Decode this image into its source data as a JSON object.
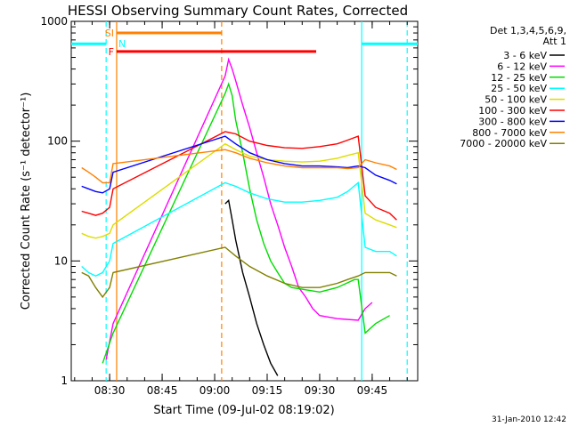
{
  "chart_data": {
    "type": "line",
    "title": "HESSI Observing Summary Count Rates, Corrected",
    "xlabel": "Start Time (09-Jul-02 08:19:02)",
    "ylabel": "Corrected Count Rate (s⁻¹ detector⁻¹)",
    "y_scale": "log",
    "ylim": [
      1,
      1000
    ],
    "xlim": [
      "08:19:02",
      "09:58:00"
    ],
    "x_ticks": [
      "08:30",
      "08:45",
      "09:00",
      "09:15",
      "09:30",
      "09:45"
    ],
    "y_ticks": [
      "1",
      "10",
      "100",
      "1000"
    ],
    "legend_title": [
      "Det 1,3,4,5,6,9,",
      "Att 1"
    ],
    "legend_position": "right",
    "series": [
      {
        "name": "3 - 6 keV",
        "color": "#000000",
        "points": [
          [
            "09:03",
            30
          ],
          [
            "09:04",
            32
          ],
          [
            "09:05",
            22
          ],
          [
            "09:06",
            15
          ],
          [
            "09:08",
            8
          ],
          [
            "09:10",
            5
          ],
          [
            "09:12",
            3
          ],
          [
            "09:14",
            2
          ],
          [
            "09:16",
            1.4
          ],
          [
            "09:18",
            1.1
          ]
        ]
      },
      {
        "name": "6 - 12 keV",
        "color": "#ff00ff",
        "points": [
          [
            "08:29",
            1.5
          ],
          [
            "08:31",
            3
          ],
          [
            "09:03",
            350
          ],
          [
            "09:04",
            480
          ],
          [
            "09:05",
            400
          ],
          [
            "09:06",
            320
          ],
          [
            "09:08",
            200
          ],
          [
            "09:10",
            130
          ],
          [
            "09:12",
            80
          ],
          [
            "09:14",
            50
          ],
          [
            "09:16",
            30
          ],
          [
            "09:18",
            20
          ],
          [
            "09:20",
            13
          ],
          [
            "09:22",
            9
          ],
          [
            "09:24",
            6
          ],
          [
            "09:26",
            5
          ],
          [
            "09:28",
            4
          ],
          [
            "09:30",
            3.5
          ],
          [
            "09:35",
            3.3
          ],
          [
            "09:41",
            3.2
          ],
          [
            "09:43",
            4
          ],
          [
            "09:45",
            4.5
          ]
        ]
      },
      {
        "name": "12 - 25 keV",
        "color": "#00dd00",
        "points": [
          [
            "08:28",
            1.4
          ],
          [
            "08:31",
            2.5
          ],
          [
            "09:03",
            250
          ],
          [
            "09:04",
            300
          ],
          [
            "09:05",
            240
          ],
          [
            "09:06",
            150
          ],
          [
            "09:08",
            80
          ],
          [
            "09:10",
            40
          ],
          [
            "09:12",
            22
          ],
          [
            "09:14",
            14
          ],
          [
            "09:16",
            10
          ],
          [
            "09:18",
            8
          ],
          [
            "09:20",
            6.5
          ],
          [
            "09:22",
            6
          ],
          [
            "09:30",
            5.5
          ],
          [
            "09:35",
            6
          ],
          [
            "09:40",
            7
          ],
          [
            "09:41",
            7
          ],
          [
            "09:43",
            2.5
          ],
          [
            "09:46",
            3
          ],
          [
            "09:50",
            3.5
          ]
        ]
      },
      {
        "name": "25 - 50 keV",
        "color": "#00ffff",
        "points": [
          [
            "08:22",
            9
          ],
          [
            "08:24",
            8
          ],
          [
            "08:26",
            7.5
          ],
          [
            "08:28",
            8
          ],
          [
            "08:30",
            10
          ],
          [
            "08:31",
            14
          ],
          [
            "09:03",
            45
          ],
          [
            "09:06",
            42
          ],
          [
            "09:10",
            37
          ],
          [
            "09:15",
            33
          ],
          [
            "09:20",
            31
          ],
          [
            "09:25",
            31
          ],
          [
            "09:30",
            32
          ],
          [
            "09:35",
            34
          ],
          [
            "09:38",
            38
          ],
          [
            "09:41",
            45
          ],
          [
            "09:43",
            13
          ],
          [
            "09:46",
            12
          ],
          [
            "09:50",
            12
          ],
          [
            "09:52",
            11
          ]
        ]
      },
      {
        "name": "50 - 100 keV",
        "color": "#dddd00",
        "points": [
          [
            "08:22",
            17
          ],
          [
            "08:24",
            16
          ],
          [
            "08:26",
            15.5
          ],
          [
            "08:28",
            16
          ],
          [
            "08:30",
            17
          ],
          [
            "08:31",
            20
          ],
          [
            "09:03",
            95
          ],
          [
            "09:06",
            85
          ],
          [
            "09:10",
            75
          ],
          [
            "09:15",
            70
          ],
          [
            "09:20",
            68
          ],
          [
            "09:25",
            67
          ],
          [
            "09:30",
            68
          ],
          [
            "09:35",
            72
          ],
          [
            "09:38",
            76
          ],
          [
            "09:41",
            80
          ],
          [
            "09:43",
            25
          ],
          [
            "09:46",
            22
          ],
          [
            "09:50",
            20
          ],
          [
            "09:52",
            19
          ]
        ]
      },
      {
        "name": "100 - 300 keV",
        "color": "#ff0000",
        "points": [
          [
            "08:22",
            26
          ],
          [
            "08:24",
            25
          ],
          [
            "08:26",
            24
          ],
          [
            "08:28",
            25
          ],
          [
            "08:30",
            28
          ],
          [
            "08:31",
            40
          ],
          [
            "09:03",
            120
          ],
          [
            "09:06",
            115
          ],
          [
            "09:10",
            100
          ],
          [
            "09:15",
            92
          ],
          [
            "09:20",
            88
          ],
          [
            "09:25",
            87
          ],
          [
            "09:30",
            90
          ],
          [
            "09:35",
            95
          ],
          [
            "09:38",
            102
          ],
          [
            "09:41",
            110
          ],
          [
            "09:43",
            35
          ],
          [
            "09:46",
            28
          ],
          [
            "09:50",
            25
          ],
          [
            "09:52",
            22
          ]
        ]
      },
      {
        "name": "300 - 800 keV",
        "color": "#0000ff",
        "points": [
          [
            "08:22",
            42
          ],
          [
            "08:24",
            40
          ],
          [
            "08:26",
            38
          ],
          [
            "08:28",
            37
          ],
          [
            "08:30",
            40
          ],
          [
            "08:31",
            55
          ],
          [
            "09:03",
            110
          ],
          [
            "09:06",
            95
          ],
          [
            "09:10",
            80
          ],
          [
            "09:15",
            70
          ],
          [
            "09:20",
            65
          ],
          [
            "09:25",
            62
          ],
          [
            "09:30",
            62
          ],
          [
            "09:35",
            61
          ],
          [
            "09:38",
            60
          ],
          [
            "09:41",
            62
          ],
          [
            "09:43",
            60
          ],
          [
            "09:46",
            52
          ],
          [
            "09:50",
            47
          ],
          [
            "09:52",
            44
          ]
        ]
      },
      {
        "name": "800 - 7000 keV",
        "color": "#ff8000",
        "points": [
          [
            "08:22",
            60
          ],
          [
            "08:24",
            55
          ],
          [
            "08:26",
            50
          ],
          [
            "08:28",
            45
          ],
          [
            "08:30",
            45
          ],
          [
            "08:31",
            65
          ],
          [
            "09:03",
            85
          ],
          [
            "09:06",
            80
          ],
          [
            "09:10",
            72
          ],
          [
            "09:15",
            66
          ],
          [
            "09:20",
            62
          ],
          [
            "09:25",
            60
          ],
          [
            "09:30",
            60
          ],
          [
            "09:35",
            60
          ],
          [
            "09:38",
            59
          ],
          [
            "09:41",
            60
          ],
          [
            "09:43",
            70
          ],
          [
            "09:46",
            66
          ],
          [
            "09:50",
            62
          ],
          [
            "09:52",
            58
          ]
        ]
      },
      {
        "name": "7000 - 20000 keV",
        "color": "#808000",
        "points": [
          [
            "08:22",
            8
          ],
          [
            "08:24",
            7.5
          ],
          [
            "08:26",
            6
          ],
          [
            "08:28",
            5
          ],
          [
            "08:30",
            6
          ],
          [
            "08:31",
            8
          ],
          [
            "09:03",
            13
          ],
          [
            "09:06",
            11
          ],
          [
            "09:10",
            9
          ],
          [
            "09:15",
            7.5
          ],
          [
            "09:20",
            6.5
          ],
          [
            "09:25",
            6
          ],
          [
            "09:30",
            6
          ],
          [
            "09:35",
            6.5
          ],
          [
            "09:38",
            7
          ],
          [
            "09:41",
            7.5
          ],
          [
            "09:43",
            8
          ],
          [
            "09:46",
            8
          ],
          [
            "09:50",
            8
          ],
          [
            "09:52",
            7.5
          ]
        ]
      }
    ],
    "annotations": {
      "vertical_lines": [
        {
          "time": "08:29",
          "color": "#00ffff",
          "style": "dashed"
        },
        {
          "time": "08:32",
          "color": "#ff8000",
          "style": "solid"
        },
        {
          "time": "09:02",
          "color": "#ff8000",
          "style": "dashed"
        },
        {
          "time": "09:42",
          "color": "#00ffff",
          "style": "solid"
        },
        {
          "time": "09:55",
          "color": "#00ffff",
          "style": "dashed"
        }
      ],
      "bars": [
        {
          "label": "N",
          "color": "#00ffff",
          "ranges": [
            [
              "08:19:02",
              "08:29"
            ],
            [
              "09:42",
              "09:58"
            ]
          ],
          "level": 650
        },
        {
          "label": "SI",
          "color": "#ff8000",
          "ranges": [
            [
              "08:32",
              "09:02"
            ]
          ],
          "level": 800
        },
        {
          "label": "F",
          "color": "#ff0000",
          "ranges": [
            [
              "08:32",
              "09:29"
            ]
          ],
          "level": 560
        }
      ]
    },
    "footer_date": "31-Jan-2010 12:42"
  }
}
